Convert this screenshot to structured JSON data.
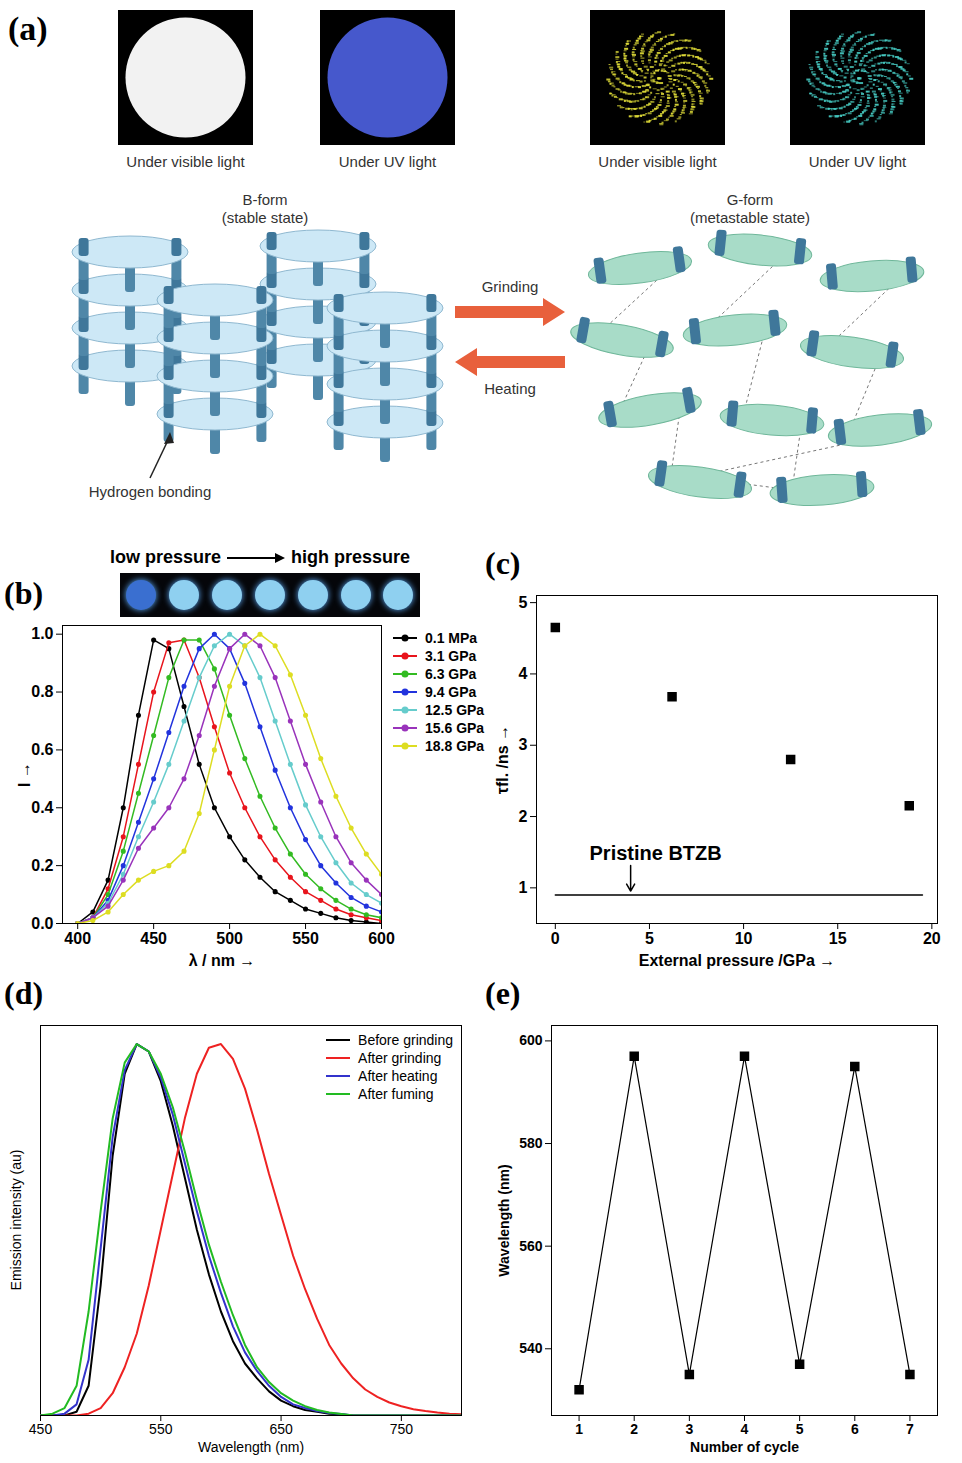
{
  "panel_a": {
    "panel": "(a)",
    "photos": [
      {
        "caption": "Under visible light"
      },
      {
        "caption": "Under UV light"
      },
      {
        "caption": "Under visible light"
      },
      {
        "caption": "Under UV light"
      }
    ],
    "forms": [
      {
        "name": "B-form",
        "state": "(stable state)"
      },
      {
        "name": "G-form",
        "state": "(metastable state)"
      }
    ],
    "arrows": [
      {
        "label": "Grinding",
        "direction": "right"
      },
      {
        "label": "Heating",
        "direction": "left"
      }
    ],
    "annotation": "Hydrogen bonding"
  },
  "chart_data": [
    {
      "panel": "(b)",
      "type": "line",
      "marker": "circle",
      "inset": {
        "left": "low pressure",
        "right": "high pressure"
      },
      "x_label": "λ / nm →",
      "y_label": "I →",
      "x": [
        400,
        410,
        420,
        430,
        440,
        450,
        460,
        470,
        480,
        490,
        500,
        510,
        520,
        530,
        540,
        550,
        560,
        570,
        580,
        590,
        600
      ],
      "series": [
        {
          "name": "0.1 MPa",
          "color": "#000000",
          "values": [
            0,
            0.04,
            0.15,
            0.4,
            0.72,
            0.98,
            0.95,
            0.75,
            0.55,
            0.4,
            0.3,
            0.22,
            0.16,
            0.11,
            0.08,
            0.05,
            0.035,
            0.02,
            0.01,
            0.005,
            0
          ]
        },
        {
          "name": "3.1 GPa",
          "color": "#e8141c",
          "values": [
            0,
            0.02,
            0.12,
            0.3,
            0.55,
            0.8,
            0.97,
            0.98,
            0.85,
            0.68,
            0.52,
            0.4,
            0.3,
            0.22,
            0.16,
            0.11,
            0.08,
            0.05,
            0.03,
            0.02,
            0.01
          ]
        },
        {
          "name": "6.3 GPa",
          "color": "#33bb22",
          "values": [
            0,
            0.02,
            0.1,
            0.25,
            0.45,
            0.65,
            0.85,
            0.98,
            0.98,
            0.88,
            0.72,
            0.57,
            0.44,
            0.33,
            0.24,
            0.17,
            0.12,
            0.08,
            0.05,
            0.03,
            0.02
          ]
        },
        {
          "name": "9.4 GPa",
          "color": "#2233dd",
          "values": [
            0,
            0.02,
            0.08,
            0.2,
            0.35,
            0.5,
            0.66,
            0.82,
            0.95,
            1.0,
            0.95,
            0.83,
            0.68,
            0.53,
            0.4,
            0.29,
            0.2,
            0.14,
            0.09,
            0.06,
            0.04
          ]
        },
        {
          "name": "12.5 GPa",
          "color": "#66cccc",
          "values": [
            0,
            0.02,
            0.07,
            0.17,
            0.3,
            0.42,
            0.55,
            0.7,
            0.85,
            0.96,
            1.0,
            0.96,
            0.85,
            0.7,
            0.55,
            0.41,
            0.3,
            0.21,
            0.14,
            0.1,
            0.07
          ]
        },
        {
          "name": "15.6 GPa",
          "color": "#9933bb",
          "values": [
            0,
            0.02,
            0.06,
            0.15,
            0.26,
            0.33,
            0.4,
            0.5,
            0.65,
            0.82,
            0.95,
            1.0,
            0.96,
            0.85,
            0.7,
            0.55,
            0.42,
            0.3,
            0.21,
            0.15,
            0.1
          ]
        },
        {
          "name": "18.8 GPa",
          "color": "#dddd22",
          "values": [
            0,
            0.01,
            0.04,
            0.1,
            0.15,
            0.18,
            0.2,
            0.25,
            0.38,
            0.6,
            0.82,
            0.96,
            1.0,
            0.96,
            0.86,
            0.72,
            0.57,
            0.44,
            0.33,
            0.24,
            0.17
          ]
        }
      ],
      "xlim": [
        390,
        600
      ],
      "xticks": [
        400,
        450,
        500,
        550,
        600
      ],
      "ylim": [
        0,
        1.03
      ],
      "yticks": [
        {
          "value": 0,
          "label": "0.0"
        },
        {
          "value": 0.2,
          "label": "0.2"
        },
        {
          "value": 0.4,
          "label": "0.4"
        },
        {
          "value": 0.6,
          "label": "0.6"
        },
        {
          "value": 0.8,
          "label": "0.8"
        },
        {
          "value": 1,
          "label": "1.0"
        }
      ],
      "legend": "right",
      "grid": false
    },
    {
      "panel": "(c)",
      "type": "scatter",
      "marker": "square",
      "color": "#000000",
      "x_label": "External pressure /GPa →",
      "y_label": "τfl. /ns →",
      "x": [
        0,
        6.2,
        12.5,
        18.8
      ],
      "values": [
        4.65,
        3.68,
        2.8,
        2.15
      ],
      "reference_line": {
        "y": 0.9,
        "x": [
          0,
          19.5
        ],
        "label": "Pristine BTZB",
        "label_x": 4
      },
      "xlim": [
        -1,
        20.3
      ],
      "xticks": [
        0,
        5,
        10,
        15,
        20
      ],
      "ylim": [
        0.5,
        5.1
      ],
      "yticks": [
        1,
        2,
        3,
        4,
        5
      ],
      "grid": false
    },
    {
      "panel": "(d)",
      "type": "line",
      "x_label": "Wavelength (nm)",
      "y_label": "Emission intensity (au)",
      "x": [
        450,
        460,
        470,
        480,
        490,
        500,
        510,
        520,
        530,
        540,
        550,
        560,
        570,
        580,
        590,
        600,
        610,
        620,
        630,
        640,
        650,
        660,
        670,
        680,
        690,
        700,
        710,
        720,
        730,
        740,
        750,
        760,
        770,
        780,
        790,
        800
      ],
      "series": [
        {
          "name": "Before grinding",
          "color": "#000000",
          "values": [
            0,
            0,
            0,
            0.01,
            0.08,
            0.35,
            0.7,
            0.92,
            1.0,
            0.98,
            0.9,
            0.78,
            0.64,
            0.5,
            0.38,
            0.28,
            0.2,
            0.14,
            0.1,
            0.065,
            0.04,
            0.025,
            0.015,
            0.01,
            0.005,
            0.003,
            0,
            0,
            0,
            0,
            0,
            0,
            0,
            0,
            0,
            0
          ]
        },
        {
          "name": "After grinding",
          "color": "#ee2222",
          "values": [
            0,
            0,
            0,
            0,
            0.005,
            0.02,
            0.06,
            0.13,
            0.22,
            0.35,
            0.5,
            0.65,
            0.8,
            0.92,
            0.99,
            1.0,
            0.96,
            0.88,
            0.77,
            0.65,
            0.54,
            0.43,
            0.34,
            0.26,
            0.19,
            0.14,
            0.1,
            0.07,
            0.05,
            0.035,
            0.025,
            0.017,
            0.012,
            0.008,
            0.005,
            0.003
          ]
        },
        {
          "name": "After heating",
          "color": "#3333cc",
          "values": [
            0,
            0,
            0.005,
            0.03,
            0.15,
            0.45,
            0.75,
            0.93,
            1.0,
            0.98,
            0.91,
            0.81,
            0.68,
            0.55,
            0.43,
            0.33,
            0.24,
            0.17,
            0.12,
            0.08,
            0.05,
            0.03,
            0.02,
            0.012,
            0.007,
            0.004,
            0,
            0,
            0,
            0,
            0,
            0,
            0,
            0,
            0,
            0
          ]
        },
        {
          "name": "After fuming",
          "color": "#22bb22",
          "values": [
            0,
            0.005,
            0.02,
            0.08,
            0.28,
            0.55,
            0.8,
            0.95,
            1.0,
            0.98,
            0.92,
            0.83,
            0.71,
            0.58,
            0.46,
            0.36,
            0.27,
            0.19,
            0.13,
            0.09,
            0.06,
            0.04,
            0.025,
            0.015,
            0.008,
            0.004,
            0,
            0,
            0,
            0,
            0,
            0,
            0,
            0,
            0,
            0
          ]
        }
      ],
      "xlim": [
        450,
        800
      ],
      "xticks": [
        450,
        550,
        650,
        750
      ],
      "ylim": [
        0,
        1.05
      ],
      "tick_labels": "x",
      "legend": "top-right",
      "grid": false
    },
    {
      "panel": "(e)",
      "type": "line",
      "marker": "square",
      "color": "#000000",
      "x_label": "Number of cycle",
      "y_label": "Wavelength (nm)",
      "x": [
        1,
        2,
        3,
        4,
        5,
        6,
        7
      ],
      "values": [
        532,
        597,
        535,
        597,
        537,
        595,
        535
      ],
      "xlim": [
        0.5,
        7.5
      ],
      "xticks": [
        1,
        2,
        3,
        4,
        5,
        6,
        7
      ],
      "ylim": [
        527,
        603
      ],
      "yticks": [
        540,
        560,
        580,
        600
      ],
      "grid": false
    }
  ]
}
